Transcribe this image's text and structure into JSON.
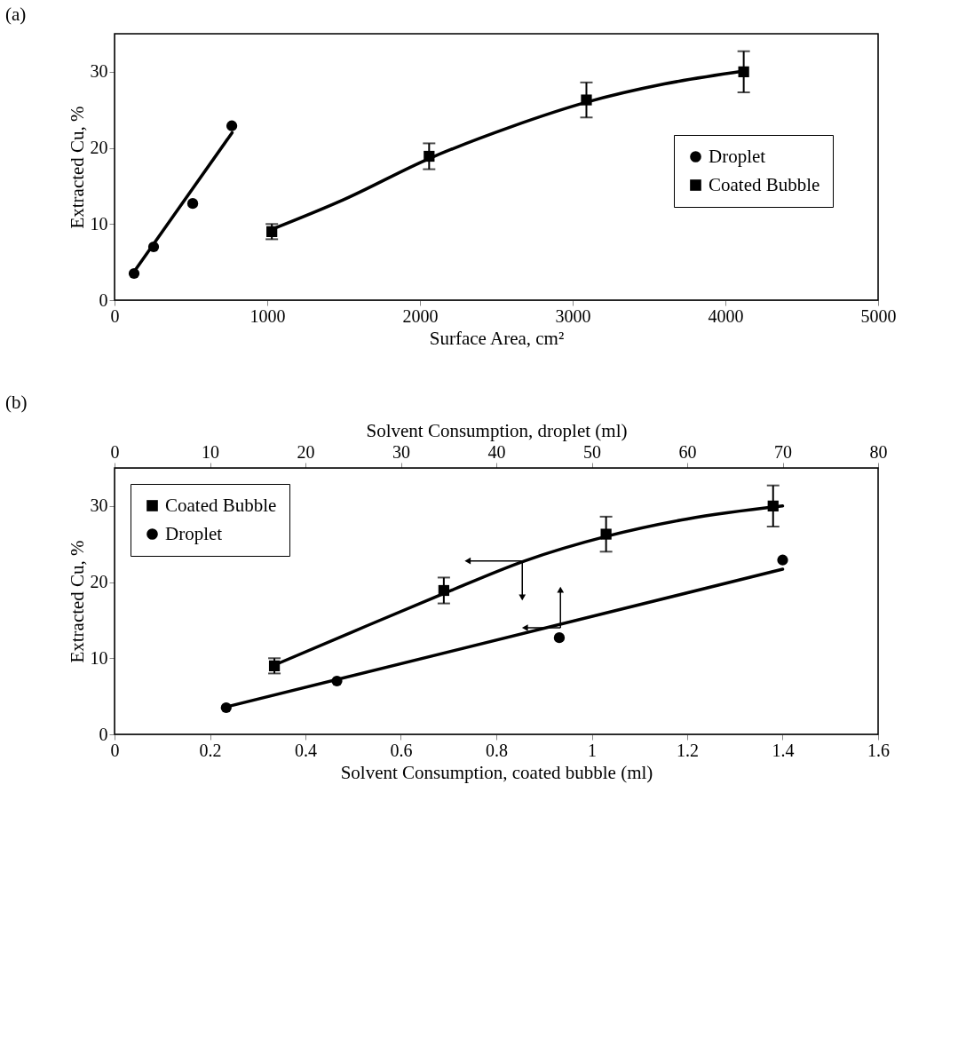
{
  "chart_data": [
    {
      "type": "scatter",
      "title": "(a)",
      "xlabel": "Surface Area, cm²",
      "ylabel": "Extracted Cu, %",
      "xlim": [
        0,
        5000
      ],
      "xticks": [
        0,
        1000,
        2000,
        3000,
        4000,
        5000
      ],
      "ylim": [
        0,
        35
      ],
      "yticks": [
        0,
        10,
        20,
        30
      ],
      "grid": false,
      "legend": "right",
      "series": [
        {
          "name": "Droplet",
          "type": "scatter",
          "marker": "circle",
          "color": "#000000",
          "x": [
            128,
            256,
            512,
            768
          ],
          "values": [
            3.5,
            7.0,
            12.7,
            22.9
          ]
        },
        {
          "name": "Coated Bubble",
          "type": "scatter",
          "marker": "square",
          "color": "#000000",
          "x": [
            1030,
            2060,
            3090,
            4120
          ],
          "values": [
            9.0,
            18.9,
            26.3,
            30.0
          ],
          "errors": [
            1.0,
            1.7,
            2.3,
            2.7
          ]
        },
        {
          "type": "line",
          "marker": "none",
          "line_style": "solid",
          "color": "#000000",
          "x": [
            130,
            770
          ],
          "values": [
            3.8,
            22.0
          ]
        },
        {
          "type": "line",
          "marker": "none",
          "line_style": "solid",
          "color": "#000000",
          "x": [
            1030,
            1500,
            2060,
            2600,
            3090,
            3600,
            4120
          ],
          "values": [
            9.3,
            13.2,
            18.6,
            22.8,
            26.0,
            28.4,
            30.1
          ]
        }
      ]
    },
    {
      "type": "scatter",
      "title": "(b)",
      "xlabel": "Solvent Consumption, coated bubble (ml)",
      "x2label": "Solvent Consumption, droplet (ml)",
      "ylabel": "Extracted Cu, %",
      "xlim": [
        0,
        1.6
      ],
      "xticks": [
        0,
        0.2,
        0.4,
        0.6,
        0.8,
        1,
        1.2,
        1.4,
        1.6
      ],
      "x2lim": [
        0,
        80
      ],
      "x2ticks": [
        0,
        10,
        20,
        30,
        40,
        50,
        60,
        70,
        80
      ],
      "ylim": [
        0,
        35
      ],
      "yticks": [
        0,
        10,
        20,
        30
      ],
      "grid": false,
      "legend": "top left",
      "series": [
        {
          "name": "Coated Bubble",
          "type": "scatter",
          "marker": "square",
          "color": "#000000",
          "x": [
            0.335,
            0.69,
            1.03,
            1.38
          ],
          "values": [
            9.0,
            18.9,
            26.3,
            30.0
          ],
          "errors": [
            1.0,
            1.7,
            2.3,
            2.7
          ]
        },
        {
          "name": "Droplet",
          "type": "scatter",
          "marker": "circle",
          "color": "#000000",
          "axis": "x2",
          "x": [
            11.7,
            23.3,
            46.6,
            70.0
          ],
          "values": [
            3.5,
            7.0,
            12.7,
            22.9
          ]
        },
        {
          "type": "line",
          "marker": "none",
          "line_style": "solid",
          "color": "#000000",
          "x": [
            0.335,
            0.5,
            0.69,
            0.86,
            1.03,
            1.2,
            1.4
          ],
          "values": [
            9.1,
            13.5,
            18.5,
            22.8,
            26.0,
            28.3,
            30.0
          ]
        },
        {
          "type": "line",
          "marker": "none",
          "line_style": "solid",
          "color": "#000000",
          "axis": "x2",
          "x": [
            11.7,
            70.0
          ],
          "values": [
            3.6,
            21.7
          ]
        }
      ]
    }
  ]
}
